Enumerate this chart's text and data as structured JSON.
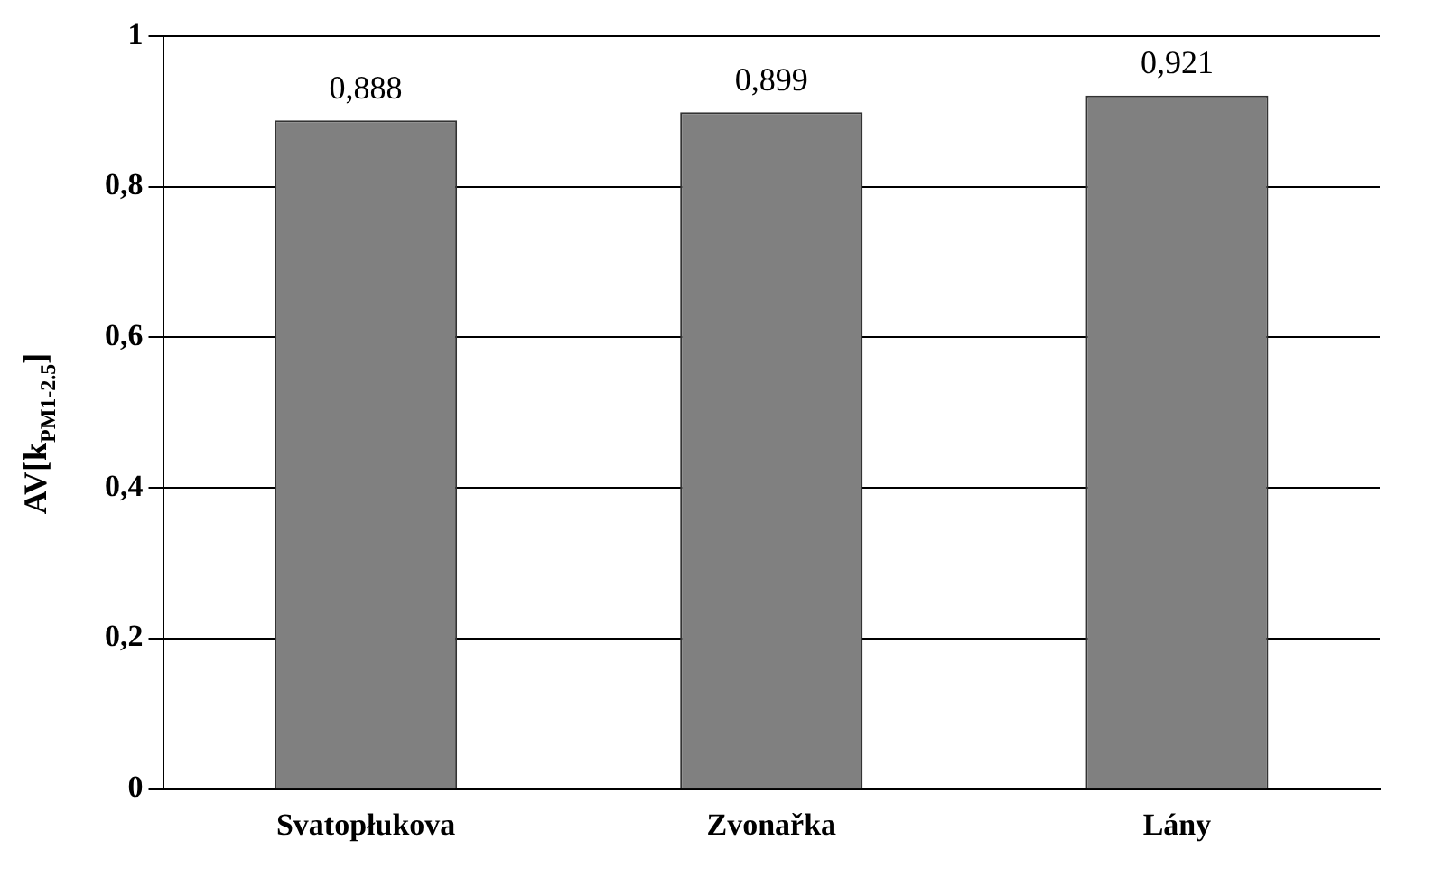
{
  "chart_data": {
    "type": "bar",
    "ylabel": "AV[k$_{PM1-2.5}$]",
    "categories": [
      "Svatopłukova",
      "Zvonařka",
      "Lány"
    ],
    "values": [
      0.888,
      0.899,
      0.921
    ],
    "value_labels": [
      "0,888",
      "0,899",
      "0,921"
    ],
    "color": "#808080",
    "ylim": [
      0,
      1
    ],
    "yticks": [
      0,
      {
        "value": 0.2,
        "label": "0,2"
      },
      {
        "value": 0.4,
        "label": "0,4"
      },
      {
        "value": 0.6,
        "label": "0,6"
      },
      {
        "value": 0.8,
        "label": "0,8"
      },
      1
    ],
    "grid": "y",
    "legend": false
  }
}
